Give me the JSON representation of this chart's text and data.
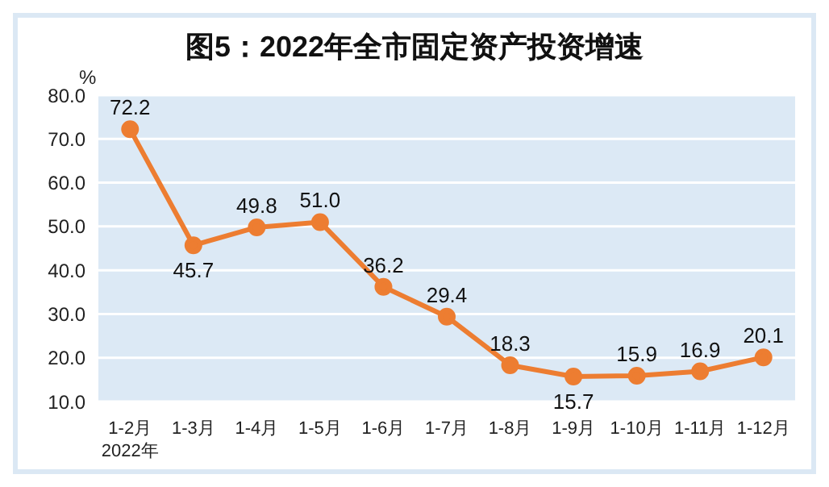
{
  "chart_data": {
    "type": "line",
    "title": "图5：2022年全市固定资产投资增速",
    "ylabel": "%",
    "annotations": [
      "2022年"
    ],
    "categories": [
      "1-2月",
      "1-3月",
      "1-4月",
      "1-5月",
      "1-6月",
      "1-7月",
      "1-8月",
      "1-9月",
      "1-10月",
      "1-11月",
      "1-12月"
    ],
    "series": [
      {
        "color": "#ed7d31",
        "values": [
          72.2,
          45.7,
          49.8,
          51.0,
          36.2,
          29.4,
          18.3,
          15.7,
          15.9,
          16.9,
          20.1
        ],
        "value_labels": [
          "72.2",
          "45.7",
          "49.8",
          "51.0",
          "36.2",
          "29.4",
          "18.3",
          "15.7",
          "15.9",
          "16.9",
          "20.1"
        ]
      }
    ],
    "ylim": [
      10,
      80
    ],
    "yticks": [
      {
        "value": 10,
        "label": "10.0"
      },
      {
        "value": 20,
        "label": "20.0"
      },
      {
        "value": 30,
        "label": "30.0"
      },
      {
        "value": 40,
        "label": "40.0"
      },
      {
        "value": 50,
        "label": "50.0"
      },
      {
        "value": 60,
        "label": "60.0"
      },
      {
        "value": 70,
        "label": "70.0"
      },
      {
        "value": 80,
        "label": "80.0"
      }
    ],
    "grid": "y",
    "marker": "circle",
    "line_style": "solid"
  }
}
